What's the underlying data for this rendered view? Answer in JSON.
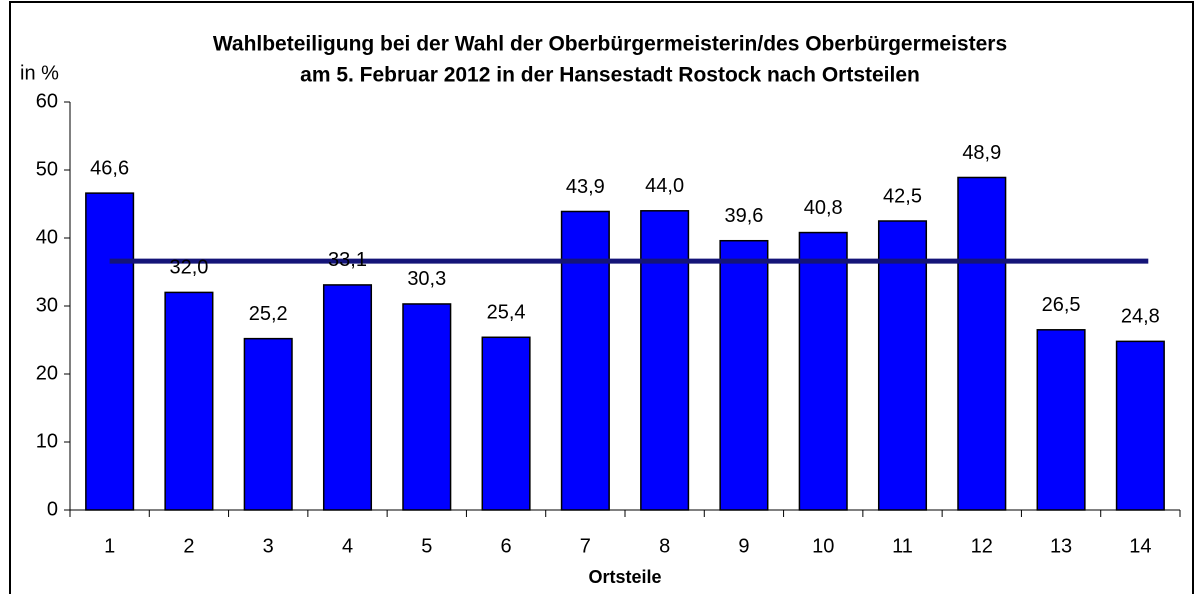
{
  "chart_data": {
    "type": "bar",
    "title": [
      "Wahlbeteiligung bei der Wahl der Oberbürgermeisterin/des Oberbürgermeisters",
      "am 5. Februar 2012 in der Hansestadt Rostock nach Ortsteilen"
    ],
    "y_label": "in %",
    "x_label": "Ortsteile",
    "categories": [
      "1",
      "2",
      "3",
      "4",
      "5",
      "6",
      "7",
      "8",
      "9",
      "10",
      "11",
      "12",
      "13",
      "14"
    ],
    "values": [
      46.6,
      32.0,
      25.2,
      33.1,
      30.3,
      25.4,
      43.9,
      44.0,
      39.6,
      40.8,
      42.5,
      48.9,
      26.5,
      24.8
    ],
    "value_labels": [
      "46,6",
      "32,0",
      "25,2",
      "33,1",
      "30,3",
      "25,4",
      "43,9",
      "44,0",
      "39,6",
      "40,8",
      "42,5",
      "48,9",
      "26,5",
      "24,8"
    ],
    "color": "#0000ff",
    "average_line": {
      "value": 36.6,
      "color": "#141478"
    },
    "ylim": [
      0,
      60
    ],
    "yticks": [
      0,
      10,
      20,
      30,
      40,
      50,
      60
    ]
  }
}
